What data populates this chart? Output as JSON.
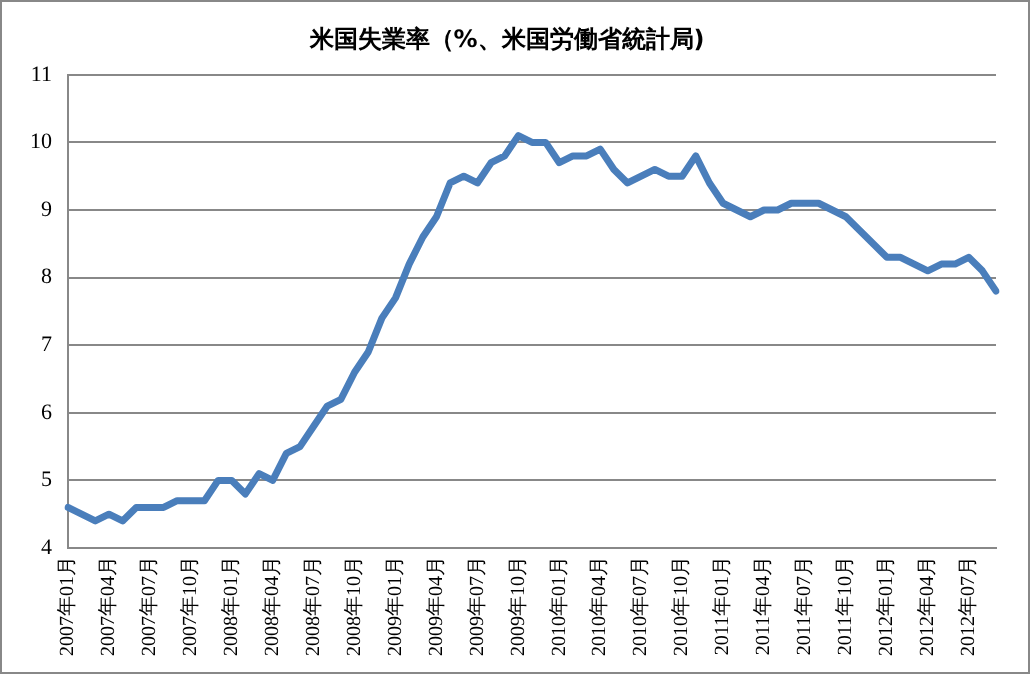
{
  "chart_data": {
    "type": "line",
    "title": "米国失業率（%、米国労働省統計局)",
    "categories": [
      "2007年01月",
      null,
      null,
      "2007年04月",
      null,
      null,
      "2007年07月",
      null,
      null,
      "2007年10月",
      null,
      null,
      "2008年01月",
      null,
      null,
      "2008年04月",
      null,
      null,
      "2008年07月",
      null,
      null,
      "2008年10月",
      null,
      null,
      "2009年01月",
      null,
      null,
      "2009年04月",
      null,
      null,
      "2009年07月",
      null,
      null,
      "2009年10月",
      null,
      null,
      "2010年01月",
      null,
      null,
      "2010年04月",
      null,
      null,
      "2010年07月",
      null,
      null,
      "2010年10月",
      null,
      null,
      "2011年01月",
      null,
      null,
      "2011年04月",
      null,
      null,
      "2011年07月",
      null,
      null,
      "2011年10月",
      null,
      null,
      "2012年01月",
      null,
      null,
      "2012年04月",
      null,
      null,
      "2012年07月",
      null,
      null
    ],
    "series": [
      {
        "color": "#4a7ebb",
        "values": [
          4.6,
          4.5,
          4.4,
          4.5,
          4.4,
          4.6,
          4.6,
          4.6,
          4.7,
          4.7,
          4.7,
          5.0,
          5.0,
          4.8,
          5.1,
          5.0,
          5.4,
          5.5,
          5.8,
          6.1,
          6.2,
          6.6,
          6.9,
          7.4,
          7.7,
          8.2,
          8.6,
          8.9,
          9.4,
          9.5,
          9.4,
          9.7,
          9.8,
          10.1,
          10.0,
          10.0,
          9.7,
          9.8,
          9.8,
          9.9,
          9.6,
          9.4,
          9.5,
          9.6,
          9.5,
          9.5,
          9.8,
          9.4,
          9.1,
          9.0,
          8.9,
          9.0,
          9.0,
          9.1,
          9.1,
          9.1,
          9.0,
          8.9,
          8.7,
          8.5,
          8.3,
          8.3,
          8.2,
          8.1,
          8.2,
          8.2,
          8.3,
          8.1,
          7.8
        ]
      }
    ],
    "ylim": [
      4,
      11
    ],
    "yticks": [
      4,
      5,
      6,
      7,
      8,
      9,
      10,
      11
    ],
    "grid": "y",
    "legend": false,
    "marker": "none",
    "line_style": "solid"
  }
}
